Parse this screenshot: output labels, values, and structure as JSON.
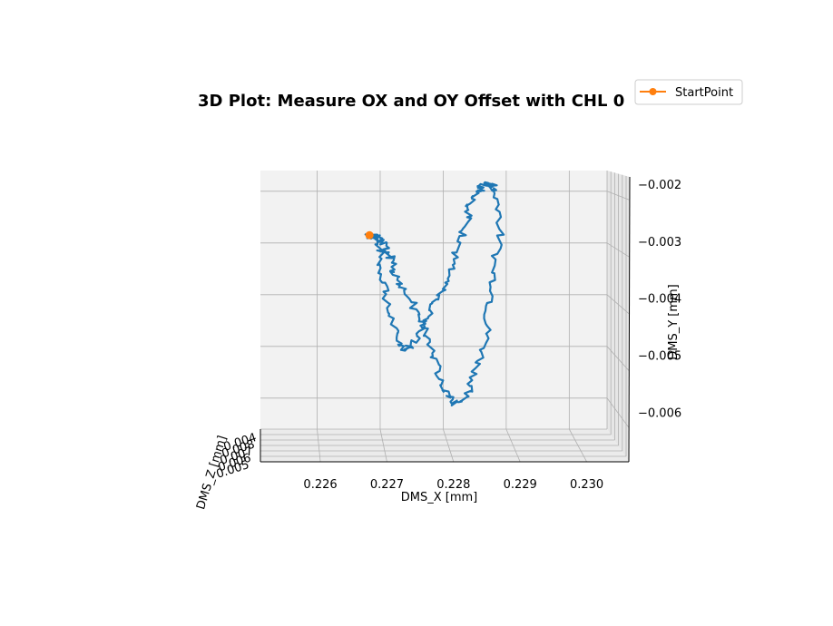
{
  "chart_data": {
    "type": "line",
    "projection": "3d",
    "title": "3D Plot: Measure OX and OY Offset with CHL 0",
    "xlabel": "DMS_X [mm]",
    "ylabel": "DMS_Y [mm]",
    "zlabel": "DMS_Z [mm]",
    "xticks": [
      "0.226",
      "0.227",
      "0.228",
      "0.229",
      "0.230"
    ],
    "yticks": [
      "0.002",
      "0.003",
      "0.004",
      "0.005",
      "0.006"
    ],
    "yticks_display": [
      "−0.002",
      "−0.003",
      "−0.004",
      "−0.005",
      "−0.006"
    ],
    "zticks": [
      "0.005",
      "0.006",
      "0.007",
      "0.008",
      "0.004"
    ],
    "xlim": [
      0.2251,
      0.2306
    ],
    "ylim": [
      -0.0066,
      -0.0016
    ],
    "grid": true,
    "legend": {
      "entries": [
        {
          "label": "StartPoint",
          "color": "#ff7f0e"
        }
      ],
      "placement": "top-right"
    },
    "series": [
      {
        "color": "#1f77b4",
        "x": [
          0.2268,
          0.2269,
          0.227,
          0.227,
          0.2271,
          0.2271,
          0.2272,
          0.2273,
          0.2274,
          0.2275,
          0.2276,
          0.2277,
          0.2278,
          0.2279,
          0.228,
          0.2281,
          0.2282,
          0.2283,
          0.2284,
          0.2284,
          0.2285,
          0.2286,
          0.2286,
          0.2287,
          0.2287,
          0.2288,
          0.2288,
          0.2289,
          0.2289,
          0.2288,
          0.2288,
          0.2287,
          0.2287,
          0.2286,
          0.2285,
          0.2284,
          0.2283,
          0.2282,
          0.2281,
          0.228,
          0.2279,
          0.2278,
          0.2277,
          0.2276,
          0.2275,
          0.2274,
          0.2273,
          0.2272,
          0.2272,
          0.2271,
          0.2271,
          0.227,
          0.227,
          0.2269,
          0.2269,
          0.2268
        ],
        "y": [
          -0.00285,
          -0.0029,
          -0.00315,
          -0.0035,
          -0.00385,
          -0.0042,
          -0.00455,
          -0.0049,
          -0.00505,
          -0.005,
          -0.00485,
          -0.0046,
          -0.00435,
          -0.0041,
          -0.00385,
          -0.00355,
          -0.0032,
          -0.00285,
          -0.00255,
          -0.0023,
          -0.0021,
          -0.00195,
          -0.0019,
          -0.00185,
          -0.00185,
          -0.0019,
          -0.002,
          -0.00235,
          -0.0029,
          -0.00345,
          -0.00395,
          -0.0044,
          -0.0048,
          -0.0052,
          -0.00555,
          -0.00585,
          -0.00605,
          -0.0061,
          -0.006,
          -0.00575,
          -0.0054,
          -0.00505,
          -0.0047,
          -0.0044,
          -0.00415,
          -0.00395,
          -0.00375,
          -0.00355,
          -0.00335,
          -0.0032,
          -0.00305,
          -0.00295,
          -0.0029,
          -0.00288,
          -0.00286,
          -0.00285
        ],
        "z": []
      }
    ],
    "start_point": {
      "x": 0.22683,
      "y": -0.00285
    }
  }
}
